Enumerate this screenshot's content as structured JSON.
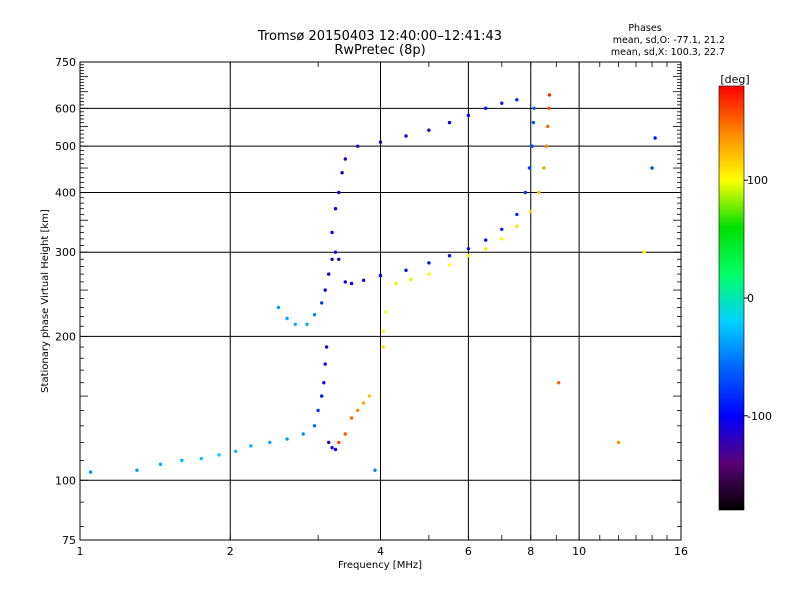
{
  "header": {
    "title_line1": "Tromsø 20150403 12:40:00–12:41:43",
    "title_line2": "RwPretec (8p)",
    "phase_heading": "Phases",
    "phase_line1": "mean, sd,O: -77.1, 21.2",
    "phase_line2": "mean, sd,X: 100.3, 22.7"
  },
  "colorbar": {
    "label": "[deg]",
    "range": [
      -180,
      180
    ],
    "ticks": [
      {
        "value": 100,
        "label": "100"
      },
      {
        "value": 0,
        "label": "0"
      },
      {
        "value": -100,
        "label": "-100"
      }
    ],
    "colormap": [
      "#000000",
      "#5a0078",
      "#0000ff",
      "#0064ff",
      "#00d0ff",
      "#00ff66",
      "#00e000",
      "#ffff00",
      "#ff8800",
      "#ff0000"
    ]
  },
  "chart_data": {
    "type": "scatter",
    "xlabel": "Frequency [MHz]",
    "ylabel": "Stationary phase Virtual Height [km]",
    "xscale": "log",
    "yscale": "log",
    "xlim": [
      1,
      16
    ],
    "ylim": [
      75,
      750
    ],
    "grid": true,
    "x_ticks": [
      {
        "value": 1,
        "label": "1"
      },
      {
        "value": 2,
        "label": "2"
      },
      {
        "value": 4,
        "label": "4"
      },
      {
        "value": 6,
        "label": "6"
      },
      {
        "value": 8,
        "label": "8"
      },
      {
        "value": 10,
        "label": "10"
      },
      {
        "value": 16,
        "label": "16"
      }
    ],
    "y_ticks": [
      {
        "value": 75,
        "label": "75"
      },
      {
        "value": 100,
        "label": "100"
      },
      {
        "value": 200,
        "label": "200"
      },
      {
        "value": 300,
        "label": "300"
      },
      {
        "value": 400,
        "label": "400"
      },
      {
        "value": 500,
        "label": "500"
      },
      {
        "value": 600,
        "label": "600"
      },
      {
        "value": 750,
        "label": "750"
      }
    ],
    "series": [
      {
        "points": [
          [
            1.05,
            104,
            -45
          ],
          [
            1.3,
            105,
            -40
          ],
          [
            1.45,
            108,
            -35
          ],
          [
            1.6,
            110,
            -30
          ],
          [
            1.75,
            111,
            -25
          ],
          [
            1.9,
            113,
            -20
          ],
          [
            2.05,
            115,
            -25
          ],
          [
            2.2,
            118,
            -30
          ],
          [
            2.4,
            120,
            -35
          ],
          [
            2.6,
            122,
            -40
          ],
          [
            2.8,
            125,
            -45
          ],
          [
            2.95,
            130,
            -60
          ],
          [
            3.0,
            140,
            -80
          ],
          [
            3.05,
            150,
            -95
          ],
          [
            3.08,
            160,
            -105
          ],
          [
            3.1,
            175,
            -110
          ],
          [
            3.12,
            190,
            -115
          ],
          [
            3.15,
            120,
            -120
          ],
          [
            3.2,
            117,
            -110
          ],
          [
            3.25,
            116,
            -105
          ],
          [
            2.5,
            230,
            -40
          ],
          [
            2.6,
            218,
            -35
          ],
          [
            2.7,
            212,
            -30
          ],
          [
            2.85,
            212,
            -35
          ],
          [
            2.95,
            222,
            -50
          ],
          [
            3.05,
            235,
            -80
          ],
          [
            3.1,
            250,
            -100
          ],
          [
            3.15,
            270,
            -110
          ],
          [
            3.2,
            290,
            -115
          ],
          [
            3.25,
            300,
            -120
          ],
          [
            3.3,
            290,
            -115
          ],
          [
            3.4,
            260,
            -110
          ],
          [
            3.5,
            258,
            -105
          ],
          [
            3.7,
            262,
            -100
          ],
          [
            4.0,
            268,
            -100
          ],
          [
            4.5,
            275,
            -95
          ],
          [
            5.0,
            285,
            -95
          ],
          [
            5.5,
            295,
            -95
          ],
          [
            6.0,
            305,
            -95
          ],
          [
            6.5,
            318,
            -95
          ],
          [
            7.0,
            335,
            -90
          ],
          [
            7.5,
            360,
            -85
          ],
          [
            7.8,
            400,
            -80
          ],
          [
            7.95,
            450,
            -75
          ],
          [
            8.05,
            500,
            -70
          ],
          [
            8.1,
            560,
            -65
          ],
          [
            8.12,
            600,
            -60
          ],
          [
            3.2,
            330,
            -100
          ],
          [
            3.25,
            370,
            -105
          ],
          [
            3.3,
            400,
            -110
          ],
          [
            3.35,
            440,
            -115
          ],
          [
            3.4,
            470,
            -120
          ],
          [
            3.6,
            500,
            -115
          ],
          [
            4.0,
            510,
            -115
          ],
          [
            4.5,
            525,
            -110
          ],
          [
            5.0,
            540,
            -110
          ],
          [
            5.5,
            560,
            -105
          ],
          [
            6.0,
            580,
            -100
          ],
          [
            6.5,
            600,
            -95
          ],
          [
            7.0,
            615,
            -90
          ],
          [
            7.5,
            625,
            -85
          ]
        ]
      },
      {
        "points": [
          [
            3.5,
            135,
            150
          ],
          [
            3.6,
            140,
            140
          ],
          [
            3.7,
            145,
            130
          ],
          [
            3.8,
            150,
            120
          ],
          [
            3.4,
            125,
            155
          ],
          [
            3.3,
            120,
            160
          ],
          [
            4.05,
            190,
            110
          ],
          [
            4.05,
            205,
            105
          ],
          [
            4.1,
            225,
            100
          ],
          [
            4.3,
            258,
            95
          ],
          [
            4.6,
            263,
            95
          ],
          [
            5.0,
            270,
            100
          ],
          [
            5.5,
            282,
            100
          ],
          [
            6.0,
            295,
            100
          ],
          [
            6.5,
            305,
            105
          ],
          [
            7.0,
            320,
            105
          ],
          [
            7.5,
            340,
            110
          ],
          [
            8.0,
            365,
            115
          ],
          [
            8.3,
            400,
            120
          ],
          [
            8.5,
            450,
            130
          ],
          [
            8.6,
            500,
            140
          ],
          [
            8.65,
            550,
            150
          ],
          [
            8.7,
            600,
            160
          ],
          [
            8.72,
            640,
            170
          ],
          [
            3.9,
            105,
            -50
          ],
          [
            9.1,
            160,
            150
          ],
          [
            12.0,
            120,
            140
          ],
          [
            13.5,
            300,
            100
          ],
          [
            14.0,
            450,
            -70
          ],
          [
            14.2,
            520,
            -90
          ]
        ]
      }
    ]
  }
}
